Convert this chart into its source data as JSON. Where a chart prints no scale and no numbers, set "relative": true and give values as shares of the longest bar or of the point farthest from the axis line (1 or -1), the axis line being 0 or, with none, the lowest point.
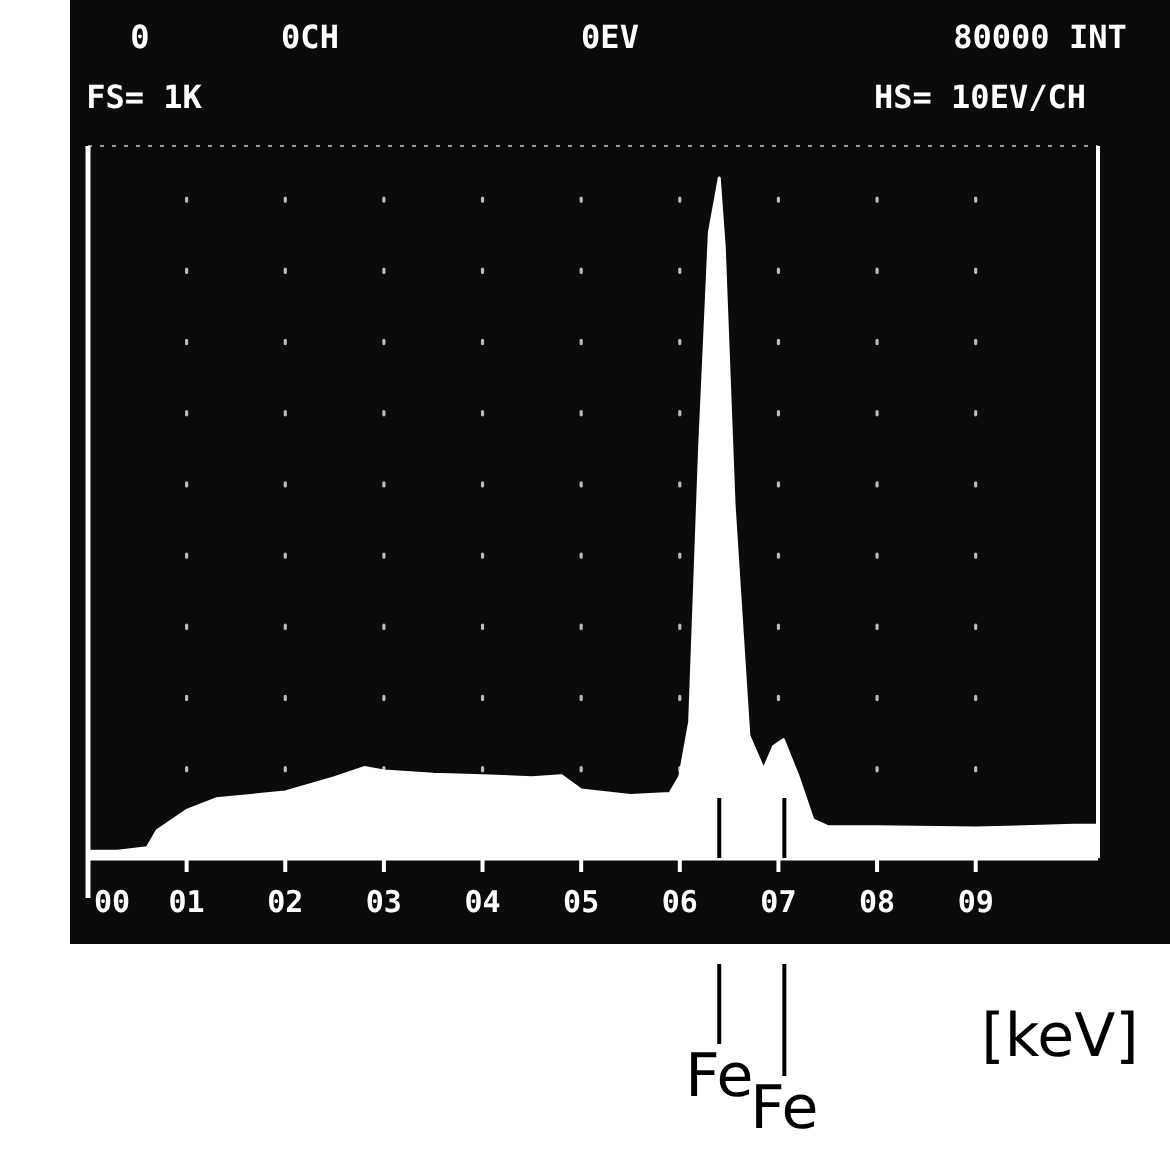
{
  "chart_data": {
    "type": "area",
    "xlabel": "[keV]",
    "relative": true,
    "grid": "x",
    "color": "#ffffff",
    "x": [
      0,
      0.3,
      0.6,
      0.7,
      1.0,
      1.3,
      2.0,
      2.5,
      2.8,
      3.0,
      3.5,
      4.0,
      4.5,
      4.8,
      5.0,
      5.5,
      5.9,
      6.0,
      6.1,
      6.2,
      6.3,
      6.4,
      6.45,
      6.55,
      6.7,
      6.85,
      6.95,
      7.05,
      7.2,
      7.35,
      7.5,
      8.0,
      9.0,
      10.0,
      10.24
    ],
    "values": [
      0.01,
      0.01,
      0.015,
      0.04,
      0.07,
      0.087,
      0.097,
      0.118,
      0.133,
      0.128,
      0.123,
      0.121,
      0.118,
      0.121,
      0.1,
      0.092,
      0.095,
      0.12,
      0.2,
      0.6,
      0.92,
      1,
      0.9,
      0.52,
      0.18,
      0.13,
      0.164,
      0.174,
      0.12,
      0.056,
      0.046,
      0.046,
      0.044,
      0.048,
      0.048
    ],
    "xlim": [
      0,
      10.24
    ],
    "xticks": [
      {
        "value": 0,
        "label": "00"
      },
      {
        "value": 1,
        "label": "01"
      },
      {
        "value": 2,
        "label": "02"
      },
      {
        "value": 3,
        "label": "03"
      },
      {
        "value": 4,
        "label": "04"
      },
      {
        "value": 5,
        "label": "05"
      },
      {
        "value": 6,
        "label": "06"
      },
      {
        "value": 7,
        "label": "07"
      },
      {
        "value": 8,
        "label": "08"
      },
      {
        "value": 9,
        "label": "09"
      }
    ],
    "annotations": [
      "0",
      "0CH",
      "0EV",
      "80000 INT",
      "FS= 1K",
      "HS= 10EV/CH",
      {
        "text": "Fe",
        "x": 6.4
      },
      {
        "text": "Fe",
        "x": 7.06
      }
    ]
  }
}
